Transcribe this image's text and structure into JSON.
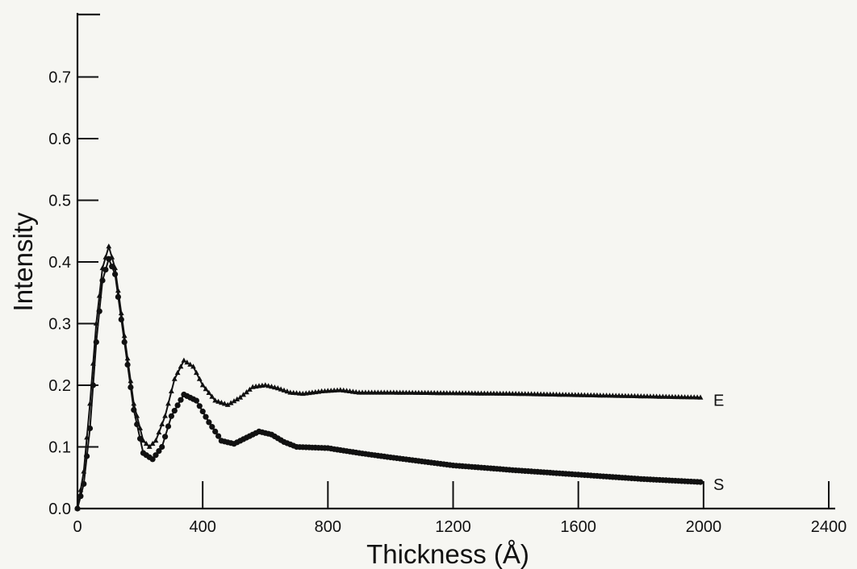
{
  "chart_data": {
    "type": "line",
    "xlabel": "Thickness (Å)",
    "ylabel": "Intensity",
    "xlim": [
      0,
      2400
    ],
    "ylim": [
      0,
      0.8
    ],
    "x_ticks": [
      0,
      400,
      800,
      1200,
      1600,
      2000,
      2400
    ],
    "x_tick_labels": [
      "0",
      "400",
      "800",
      "1200",
      "1600",
      "2000",
      "2400"
    ],
    "y_ticks": [
      0.0,
      0.1,
      0.2,
      0.3,
      0.4,
      0.5,
      0.6,
      0.7
    ],
    "y_tick_labels": [
      "0.0",
      "0.1",
      "0.2",
      "0.3",
      "0.4",
      "0.5",
      "0.6",
      "0.7"
    ],
    "grid": false,
    "legend": "none; series labelled at right end of curves",
    "series": [
      {
        "name": "E",
        "marker": "triangle",
        "points": [
          [
            0,
            0.0
          ],
          [
            20,
            0.06
          ],
          [
            40,
            0.17
          ],
          [
            60,
            0.3
          ],
          [
            80,
            0.39
          ],
          [
            100,
            0.425
          ],
          [
            120,
            0.39
          ],
          [
            150,
            0.28
          ],
          [
            180,
            0.17
          ],
          [
            210,
            0.11
          ],
          [
            230,
            0.1
          ],
          [
            250,
            0.11
          ],
          [
            280,
            0.15
          ],
          [
            310,
            0.21
          ],
          [
            340,
            0.24
          ],
          [
            370,
            0.23
          ],
          [
            400,
            0.2
          ],
          [
            440,
            0.175
          ],
          [
            480,
            0.168
          ],
          [
            520,
            0.18
          ],
          [
            560,
            0.197
          ],
          [
            600,
            0.2
          ],
          [
            640,
            0.195
          ],
          [
            680,
            0.188
          ],
          [
            720,
            0.186
          ],
          [
            780,
            0.19
          ],
          [
            840,
            0.192
          ],
          [
            900,
            0.188
          ],
          [
            1000,
            0.188
          ],
          [
            1200,
            0.187
          ],
          [
            1400,
            0.186
          ],
          [
            1600,
            0.184
          ],
          [
            1800,
            0.182
          ],
          [
            1990,
            0.18
          ]
        ]
      },
      {
        "name": "S",
        "marker": "circle",
        "points": [
          [
            0,
            0.0
          ],
          [
            20,
            0.04
          ],
          [
            40,
            0.13
          ],
          [
            60,
            0.27
          ],
          [
            80,
            0.37
          ],
          [
            100,
            0.405
          ],
          [
            120,
            0.38
          ],
          [
            150,
            0.27
          ],
          [
            180,
            0.16
          ],
          [
            210,
            0.09
          ],
          [
            240,
            0.08
          ],
          [
            270,
            0.1
          ],
          [
            300,
            0.15
          ],
          [
            340,
            0.185
          ],
          [
            380,
            0.175
          ],
          [
            420,
            0.14
          ],
          [
            460,
            0.11
          ],
          [
            500,
            0.105
          ],
          [
            540,
            0.115
          ],
          [
            580,
            0.125
          ],
          [
            620,
            0.12
          ],
          [
            660,
            0.108
          ],
          [
            700,
            0.1
          ],
          [
            800,
            0.098
          ],
          [
            900,
            0.09
          ],
          [
            1000,
            0.083
          ],
          [
            1200,
            0.07
          ],
          [
            1400,
            0.062
          ],
          [
            1600,
            0.055
          ],
          [
            1800,
            0.048
          ],
          [
            1990,
            0.043
          ]
        ]
      }
    ]
  }
}
